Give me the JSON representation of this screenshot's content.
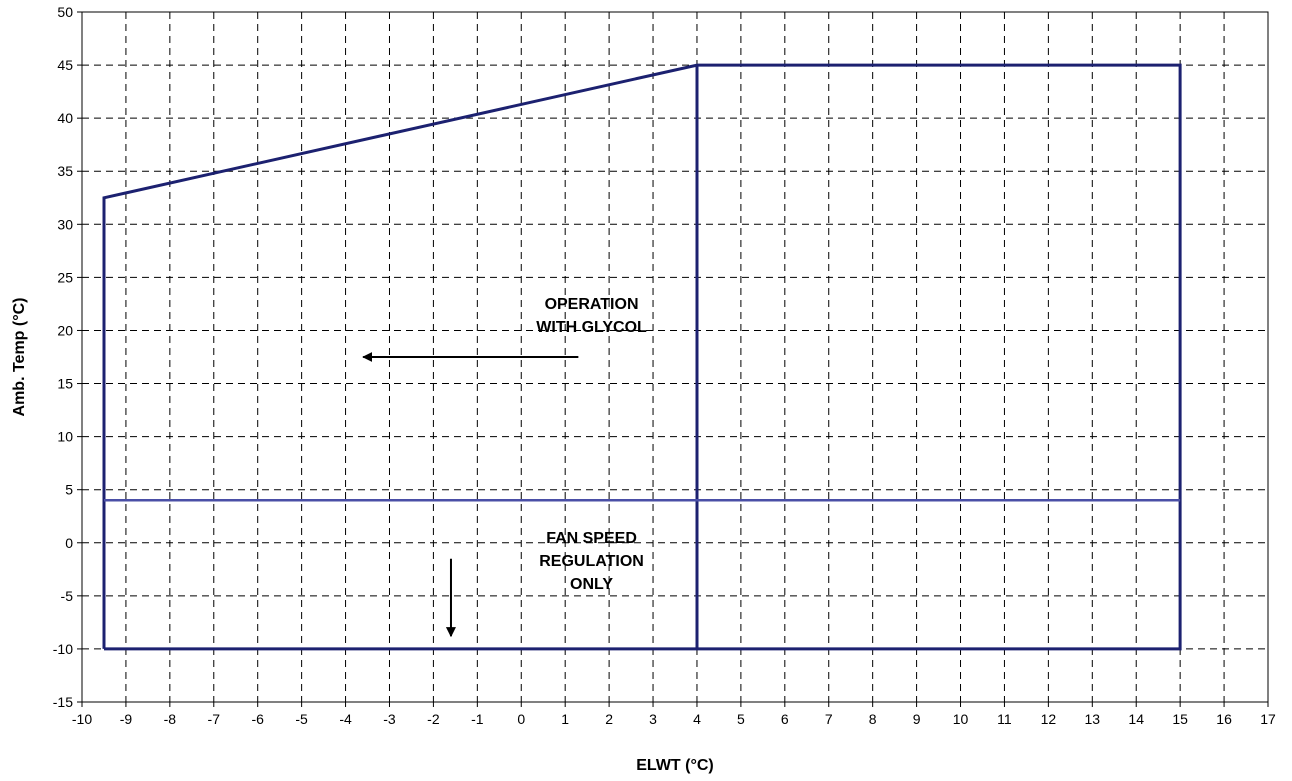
{
  "chart_data": {
    "type": "line",
    "title": "",
    "xlabel": "ELWT (°C)",
    "ylabel": "Amb. Temp (°C)",
    "xlim": [
      -10,
      17
    ],
    "ylim": [
      -15,
      50
    ],
    "x_ticks": [
      -10,
      -9,
      -8,
      -7,
      -6,
      -5,
      -4,
      -3,
      -2,
      -1,
      0,
      1,
      2,
      3,
      4,
      5,
      6,
      7,
      8,
      9,
      10,
      11,
      12,
      13,
      14,
      15,
      16,
      17
    ],
    "y_ticks": [
      -15,
      -10,
      -5,
      0,
      5,
      10,
      15,
      20,
      25,
      30,
      35,
      40,
      45,
      50
    ],
    "grid": true,
    "series": [
      {
        "color": "#1c2170",
        "points": [
          [
            -9.5,
            -10
          ],
          [
            -9.5,
            32.5
          ],
          [
            4,
            45
          ],
          [
            15,
            45
          ],
          [
            15,
            -10
          ],
          [
            -9.5,
            -10
          ]
        ]
      },
      {
        "color": "#1c2170",
        "points": [
          [
            4,
            45
          ],
          [
            4,
            -10
          ]
        ]
      },
      {
        "color": "#4a4fa6",
        "points": [
          [
            -9.5,
            4
          ],
          [
            15,
            4
          ]
        ]
      }
    ],
    "annotations": [
      {
        "id": "glycol",
        "lines": [
          "OPERATION",
          "WITH GLYCOL"
        ],
        "x": 1.6,
        "y": 22,
        "arrow": {
          "from": [
            1.3,
            17.5
          ],
          "to": [
            -3.6,
            17.5
          ]
        }
      },
      {
        "id": "fan",
        "lines": [
          "FAN SPEED",
          "REGULATION",
          "ONLY"
        ],
        "x": 1.6,
        "y": 0,
        "arrow": {
          "from": [
            -1.6,
            -1.5
          ],
          "to": [
            -1.6,
            -8.8
          ]
        }
      }
    ]
  }
}
